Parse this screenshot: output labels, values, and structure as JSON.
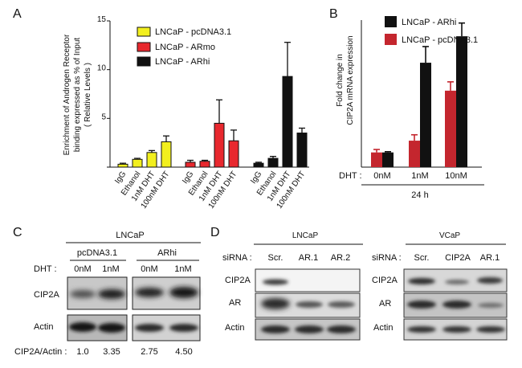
{
  "panel_a": {
    "letter": "A",
    "ylabel_lines": [
      "Enrichment of Androgen Receptor",
      "binding    expressed as % of Input",
      "( Relative Levels )"
    ],
    "legend": [
      "LNCaP - pcDNA3.1",
      "LNCaP - ARmo",
      "LNCaP - ARhi"
    ]
  },
  "panel_b": {
    "letter": "B",
    "ylabel_lines": [
      "Fold change in",
      "CIP2A mRNA expression"
    ],
    "legend": [
      "LNCaP - ARhi",
      "LNCaP - pcDNA3.1"
    ],
    "dht_label": "DHT :",
    "timepoint": "24 h"
  },
  "panel_c": {
    "letter": "C",
    "cell_line": "LNCaP",
    "groups": [
      "pcDNA3.1",
      "ARhi"
    ],
    "dht_label": "DHT :",
    "lanes": [
      "0nM",
      "1nM",
      "0nM",
      "1nM"
    ],
    "rows": [
      "CIP2A",
      "Actin"
    ],
    "ratio_label": "CIP2A/Actin :",
    "ratios": [
      "1.0",
      "3.35",
      "2.75",
      "4.50"
    ]
  },
  "panel_d": {
    "letter": "D",
    "left": {
      "cell_line": "LNCaP",
      "sirna_label": "siRNA :",
      "lanes": [
        "Scr.",
        "AR.1",
        "AR.2"
      ],
      "rows": [
        "CIP2A",
        "AR",
        "Actin"
      ]
    },
    "right": {
      "cell_line": "VCaP",
      "sirna_label": "siRNA :",
      "lanes": [
        "Scr.",
        "CIP2A",
        "AR.1"
      ],
      "rows": [
        "CIP2A",
        "AR",
        "Actin"
      ]
    }
  },
  "colors": {
    "yellow": "#f2ef1e",
    "red": "#e8282e",
    "darkred": "#c4262e",
    "black": "#111111"
  },
  "chart_data": [
    {
      "type": "bar",
      "title": "",
      "ylabel": "Enrichment of Androgen Receptor binding expressed as % of Input ( Relative Levels )",
      "xlabel": "",
      "ylim": [
        0,
        15
      ],
      "yticks": [
        0,
        5,
        10,
        15
      ],
      "legend_position": "top",
      "categories": [
        "IgG",
        "Ethanol",
        "1nM DHT",
        "100nM DHT"
      ],
      "series": [
        {
          "name": "LNCaP - pcDNA3.1",
          "color": "#f2ef1e",
          "values": [
            0.3,
            0.8,
            1.5,
            2.6
          ],
          "errors": [
            0.1,
            0.1,
            0.2,
            0.6
          ]
        },
        {
          "name": "LNCaP - ARmo",
          "color": "#e8282e",
          "values": [
            0.5,
            0.6,
            4.5,
            2.7
          ],
          "errors": [
            0.2,
            0.1,
            2.4,
            1.1
          ]
        },
        {
          "name": "LNCaP - ARhi",
          "color": "#111111",
          "values": [
            0.4,
            0.9,
            9.3,
            3.5
          ],
          "errors": [
            0.1,
            0.2,
            3.5,
            0.5
          ]
        }
      ]
    },
    {
      "type": "bar",
      "title": "",
      "ylabel": "Fold change in CIP2A mRNA expression",
      "xlabel": "DHT",
      "categories": [
        "0nM",
        "1nM",
        "10nM"
      ],
      "ylim": [
        0,
        10
      ],
      "yticks": [],
      "legend_position": "top-left",
      "series": [
        {
          "name": "LNCaP - pcDNA3.1",
          "color": "#c4262e",
          "values": [
            1.0,
            1.8,
            5.2
          ],
          "errors": [
            0.2,
            0.4,
            0.6
          ]
        },
        {
          "name": "LNCaP - ARhi",
          "color": "#111111",
          "values": [
            1.0,
            7.1,
            8.9
          ],
          "errors": [
            0.05,
            1.1,
            0.9
          ]
        }
      ]
    }
  ]
}
